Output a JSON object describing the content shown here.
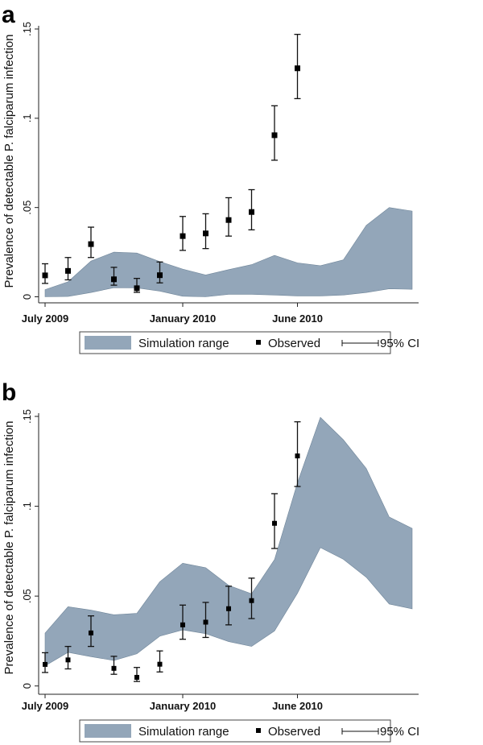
{
  "colors": {
    "band": "#93a6b9",
    "band_edge": "#6f8599",
    "marker": "#000000"
  },
  "chart_data": [
    {
      "panel": "a",
      "type": "area",
      "ylabel": "Prevalence of detectable P. falciparum infection",
      "ylim": [
        0,
        0.15
      ],
      "yticks": [
        0,
        0.05,
        0.1,
        0.15
      ],
      "ytick_labels": [
        "0",
        ".05",
        ".1",
        ".15"
      ],
      "x_unit": "months since July 2009",
      "xlim": [
        0,
        16
      ],
      "xticks": [
        0,
        6,
        11
      ],
      "xtick_labels": [
        "July 2009",
        "January 2010",
        "June 2010"
      ],
      "legend": {
        "placement": "bottom",
        "entries": [
          "Simulation range",
          "Observed",
          "95% CI"
        ]
      },
      "simulation_range": {
        "x": [
          0,
          1,
          2,
          3,
          4,
          5,
          6,
          7,
          8,
          9,
          10,
          11,
          12,
          13,
          14,
          15,
          16
        ],
        "upper": [
          0.004,
          0.0084,
          0.02,
          0.025,
          0.0245,
          0.0197,
          0.0155,
          0.0122,
          0.0152,
          0.018,
          0.0232,
          0.019,
          0.0174,
          0.0207,
          0.04,
          0.05,
          0.048
        ],
        "lower": [
          0.0,
          0.0002,
          0.0024,
          0.0051,
          0.005,
          0.0032,
          0.0003,
          0.0,
          0.0014,
          0.0014,
          0.001,
          0.0005,
          0.0005,
          0.001,
          0.0024,
          0.0045,
          0.0042
        ]
      },
      "observed": {
        "x": [
          0,
          1,
          2,
          3,
          4,
          5,
          6,
          7,
          8,
          9,
          10,
          11
        ],
        "y": [
          0.012,
          0.0145,
          0.0295,
          0.0098,
          0.0048,
          0.0121,
          0.034,
          0.0355,
          0.043,
          0.0475,
          0.0905,
          0.128
        ],
        "ci_low": [
          0.0075,
          0.0095,
          0.022,
          0.0065,
          0.0025,
          0.0078,
          0.026,
          0.027,
          0.034,
          0.0375,
          0.0765,
          0.111
        ],
        "ci_high": [
          0.0185,
          0.022,
          0.039,
          0.0165,
          0.0103,
          0.0195,
          0.045,
          0.0465,
          0.0555,
          0.06,
          0.107,
          0.147
        ]
      }
    },
    {
      "panel": "b",
      "type": "area",
      "ylabel": "Prevalence of detectable P. falciparum infection",
      "ylim": [
        0,
        0.15
      ],
      "yticks": [
        0,
        0.05,
        0.1,
        0.15
      ],
      "ytick_labels": [
        "0",
        ".05",
        ".1",
        ".15"
      ],
      "x_unit": "months since July 2009",
      "xlim": [
        0,
        16
      ],
      "xticks": [
        0,
        6,
        11
      ],
      "xtick_labels": [
        "July 2009",
        "January 2010",
        "June 2010"
      ],
      "legend": {
        "placement": "bottom",
        "entries": [
          "Simulation range",
          "Observed",
          "95% CI"
        ]
      },
      "simulation_range": {
        "x": [
          0,
          1,
          2,
          3,
          4,
          5,
          6,
          7,
          8,
          9,
          10,
          11,
          12,
          13,
          14,
          15,
          16
        ],
        "upper": [
          0.0294,
          0.0441,
          0.0422,
          0.0396,
          0.0404,
          0.058,
          0.0683,
          0.0658,
          0.056,
          0.0513,
          0.0703,
          0.113,
          0.1495,
          0.137,
          0.121,
          0.094,
          0.0877
        ],
        "lower": [
          0.0112,
          0.0187,
          0.0163,
          0.0142,
          0.0179,
          0.0277,
          0.0312,
          0.0291,
          0.0247,
          0.022,
          0.0306,
          0.0516,
          0.077,
          0.0705,
          0.0605,
          0.0456,
          0.0429
        ]
      },
      "observed": {
        "x": [
          0,
          1,
          2,
          3,
          4,
          5,
          6,
          7,
          8,
          9,
          10,
          11
        ],
        "y": [
          0.012,
          0.0145,
          0.0295,
          0.0098,
          0.0048,
          0.0121,
          0.034,
          0.0355,
          0.043,
          0.0475,
          0.0905,
          0.128
        ],
        "ci_low": [
          0.0075,
          0.0095,
          0.022,
          0.0065,
          0.0025,
          0.0078,
          0.026,
          0.027,
          0.034,
          0.0375,
          0.0765,
          0.111
        ],
        "ci_high": [
          0.0185,
          0.022,
          0.039,
          0.0165,
          0.0103,
          0.0195,
          0.045,
          0.0465,
          0.0555,
          0.06,
          0.107,
          0.147
        ]
      }
    }
  ]
}
